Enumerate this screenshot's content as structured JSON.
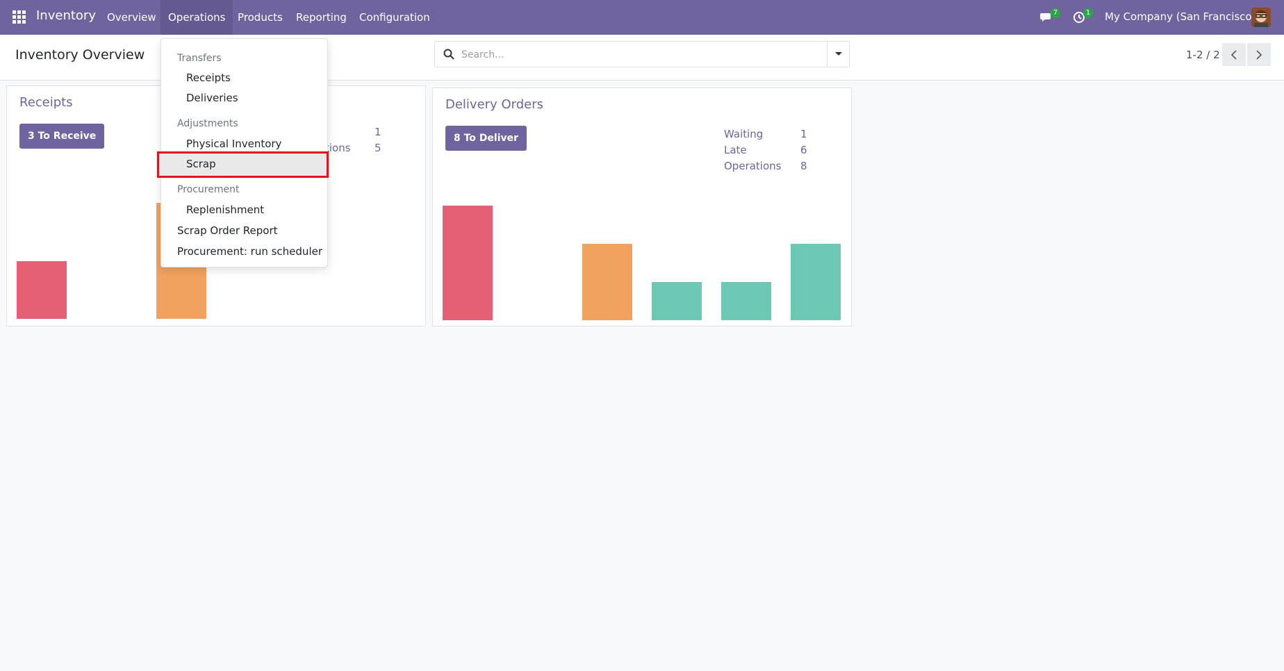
{
  "navbar": {
    "app_name": "Inventory",
    "menu": [
      "Overview",
      "Operations",
      "Products",
      "Reporting",
      "Configuration"
    ],
    "messages_badge": "7",
    "activities_badge": "1",
    "company": "My Company (San Francisco)",
    "apps_icon": "grid-icon",
    "messages_icon": "chat-icon",
    "activities_icon": "clock-icon",
    "bg_color": "#71639e"
  },
  "control_panel": {
    "title": "Inventory Overview",
    "search_placeholder": "Search...",
    "pager": "1-2 / 2"
  },
  "receipts_card": {
    "title": "Receipts",
    "button": "3 To Receive",
    "stats": [
      {
        "label": "",
        "value": "1"
      },
      {
        "label": "tions",
        "value": "5"
      }
    ],
    "bars": [
      {
        "color": "#e45f74",
        "value": 0.5
      },
      {
        "color": "#f0a25e",
        "value": 1.0
      }
    ]
  },
  "delivery_card": {
    "title": "Delivery Orders",
    "button": "8 To Deliver",
    "stats": [
      {
        "label": "Waiting",
        "value": "1"
      },
      {
        "label": "Late",
        "value": "6"
      },
      {
        "label": "Operations",
        "value": "8"
      }
    ],
    "bars": [
      {
        "color": "#e45f74",
        "value": 3
      },
      {
        "color": "#f0a25e",
        "value": 2
      },
      {
        "color": "#6cc8b3",
        "value": 1
      },
      {
        "color": "#6cc8b3",
        "value": 1
      },
      {
        "color": "#6cc8b3",
        "value": 2
      }
    ]
  },
  "dropdown": {
    "transfers_header": "Transfers",
    "receipts": "Receipts",
    "deliveries": "Deliveries",
    "adjustments_header": "Adjustments",
    "physical_inventory": "Physical Inventory",
    "scrap": "Scrap",
    "procurement_header": "Procurement",
    "replenishment": "Replenishment",
    "scrap_order_report": "Scrap Order Report",
    "run_scheduler": "Procurement: run scheduler"
  }
}
